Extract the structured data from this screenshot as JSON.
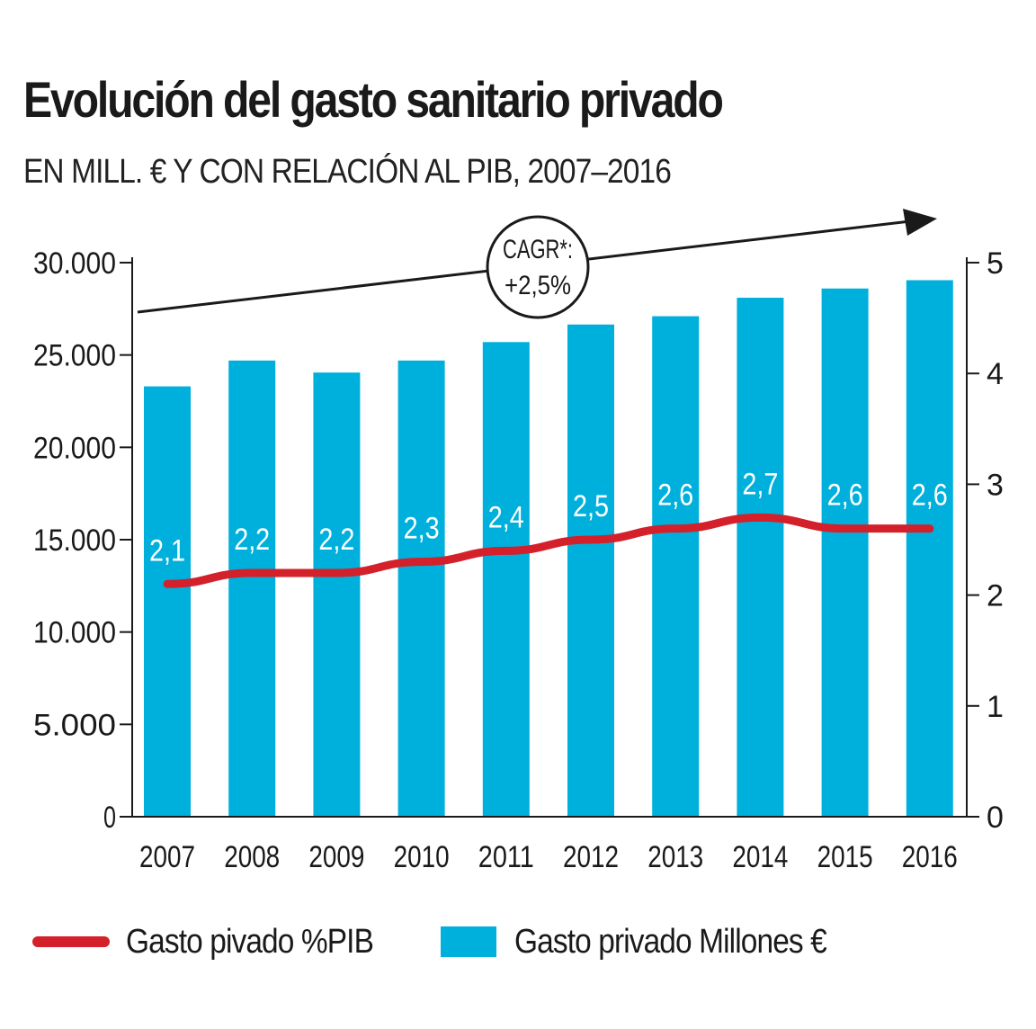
{
  "chart_data": {
    "type": "bar",
    "title": "Evolución del gasto sanitario privado",
    "subtitle": "EN MILL. € Y CON RELACIÓN AL PIB, 2007–2016",
    "categories": [
      "2007",
      "2008",
      "2009",
      "2010",
      "2011",
      "2012",
      "2013",
      "2014",
      "2015",
      "2016"
    ],
    "series": [
      {
        "name": "Gasto privado Millones €",
        "type": "bar",
        "axis": "left",
        "color": "#00b0dc",
        "values": [
          23300,
          24700,
          24050,
          24700,
          25700,
          26650,
          27100,
          28100,
          28600,
          29050
        ]
      },
      {
        "name": "Gasto pivado %PIB",
        "type": "line",
        "axis": "right",
        "color": "#d4202a",
        "values": [
          2.1,
          2.2,
          2.2,
          2.3,
          2.4,
          2.5,
          2.6,
          2.7,
          2.6,
          2.6
        ],
        "labels": [
          "2,1",
          "2,2",
          "2,2",
          "2,3",
          "2,4",
          "2,5",
          "2,6",
          "2,7",
          "2,6",
          "2,6"
        ]
      }
    ],
    "y_left": {
      "range": [
        0,
        30000
      ],
      "ticks": [
        0,
        5000,
        10000,
        15000,
        20000,
        25000,
        30000
      ],
      "tick_labels": [
        "0",
        "5.000",
        "10.000",
        "15.000",
        "20.000",
        "25.000",
        "30.000"
      ]
    },
    "y_right": {
      "range": [
        0,
        5
      ],
      "ticks": [
        0,
        1,
        2,
        3,
        4,
        5
      ],
      "tick_labels": [
        "0",
        "1",
        "2",
        "3",
        "4",
        "5"
      ]
    },
    "annotation": {
      "line1": "CAGR*:",
      "line2": "+2,5%"
    },
    "legend": [
      {
        "name": "Gasto pivado %PIB",
        "kind": "line",
        "color": "#d4202a"
      },
      {
        "name": "Gasto privado Millones €",
        "kind": "box",
        "color": "#00b0dc"
      }
    ],
    "legend_position": "bottom"
  }
}
